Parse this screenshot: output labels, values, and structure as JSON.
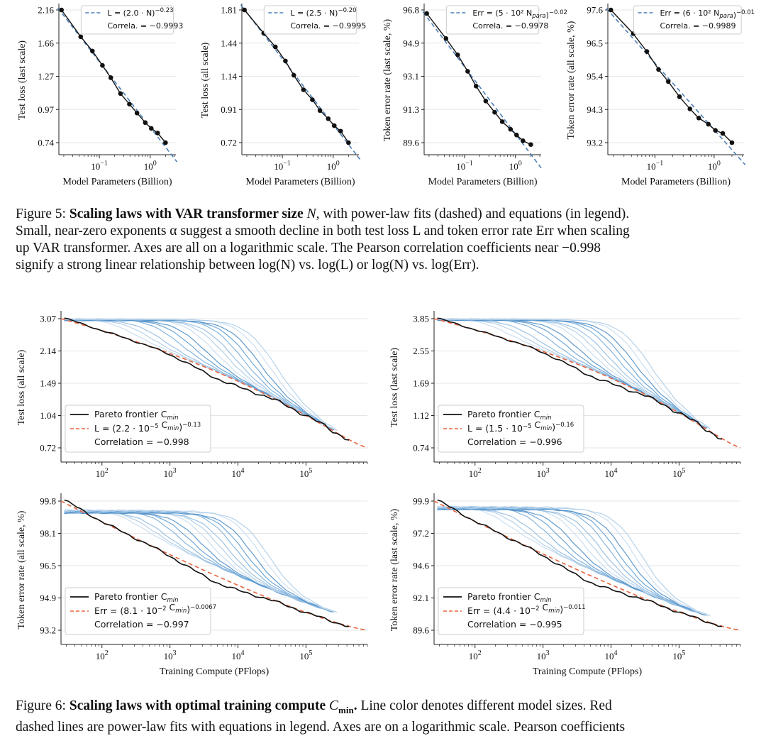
{
  "figure5": {
    "caption": {
      "label": "Figure 5:",
      "bold": "Scaling laws with VAR transformer size",
      "rest_line1": "with power-law fits (dashed) and equations (in legend).",
      "line2": "Small, near-zero exponents α suggest a smooth decline in both test loss L and token error rate Err when scaling",
      "line3": "up VAR transformer. Axes are all on a logarithmic scale. The Pearson correlation coefficients near −0.998",
      "line4": "signify a strong linear relationship between log(N) vs. log(L) or log(N) vs. log(Err)."
    }
  },
  "figure6": {
    "caption": {
      "label": "Figure 6:",
      "bold": "Scaling laws with optimal training compute",
      "rest_line1": "Line color denotes different model sizes. Red",
      "line2": "dashed lines are power-law fits with equations in legend. Axes are on a logarithmic scale. Pearson coefficients"
    }
  },
  "colors": {
    "data_line": "#111111",
    "fit_blue": "#4c7fb8",
    "fit_red": "#e8653f",
    "curves": [
      "#c7dcef",
      "#aecde8",
      "#94bde1",
      "#7aaedb",
      "#629fd3",
      "#4f8fc8"
    ]
  },
  "chart_data": [
    {
      "id": "f5a",
      "type": "line",
      "panel": "fig5",
      "xlabel": "Model Parameters (Billion)",
      "ylabel": "Test loss (last scale)",
      "x_scale": "log",
      "y_scale": "log",
      "xlim": [
        0.016,
        3.2
      ],
      "yticks": [
        "2.16",
        "1.66",
        "1.27",
        "0.97",
        "0.74"
      ],
      "xticks": [
        "10^-1",
        "10^0"
      ],
      "legend": [
        "L = (2.0 · N)^−0.23",
        "Correla. = −0.9993"
      ],
      "fit": {
        "a": 2.0,
        "alpha": 0.23
      },
      "x": [
        0.018,
        0.043,
        0.073,
        0.115,
        0.168,
        0.26,
        0.39,
        0.55,
        0.8,
        1.05,
        1.4,
        2.0
      ],
      "y": [
        2.16,
        1.74,
        1.55,
        1.38,
        1.25,
        1.1,
        1.01,
        0.94,
        0.87,
        0.83,
        0.8,
        0.74
      ]
    },
    {
      "id": "f5b",
      "type": "line",
      "panel": "fig5",
      "xlabel": "Model Parameters (Billion)",
      "ylabel": "Test loss (all scale)",
      "x_scale": "log",
      "y_scale": "log",
      "xlim": [
        0.016,
        3.2
      ],
      "yticks": [
        "1.81",
        "1.44",
        "1.14",
        "0.91",
        "0.72"
      ],
      "xticks": [
        "10^-1",
        "10^0"
      ],
      "legend": [
        "L = (2.5 · N)^−0.20",
        "Correla. = −0.9995"
      ],
      "fit": {
        "a": 2.5,
        "alpha": 0.2
      },
      "x": [
        0.018,
        0.043,
        0.073,
        0.115,
        0.168,
        0.26,
        0.39,
        0.55,
        0.8,
        1.05,
        1.4,
        2.0
      ],
      "y": [
        1.81,
        1.54,
        1.4,
        1.27,
        1.15,
        1.04,
        0.97,
        0.9,
        0.85,
        0.81,
        0.78,
        0.72
      ]
    },
    {
      "id": "f5c",
      "type": "line",
      "panel": "fig5",
      "xlabel": "Model Parameters (Billion)",
      "ylabel": "Token error rate (last scale, %)",
      "x_scale": "log",
      "y_scale": "log",
      "xlim": [
        0.016,
        3.2
      ],
      "yticks": [
        "96.8",
        "94.9",
        "93.1",
        "91.3",
        "89.6"
      ],
      "xticks": [
        "10^-1",
        "10^0"
      ],
      "legend": [
        "Err = (5 · 10² N_para)^−0.02",
        "Correla. = −0.9978"
      ],
      "fit": {
        "a": 500,
        "alpha": 0.02
      },
      "x": [
        0.018,
        0.043,
        0.073,
        0.115,
        0.168,
        0.26,
        0.39,
        0.55,
        0.8,
        1.05,
        1.4,
        2.0
      ],
      "y": [
        96.6,
        95.2,
        94.3,
        93.4,
        92.6,
        91.8,
        91.2,
        90.7,
        90.3,
        90.0,
        89.7,
        89.5
      ]
    },
    {
      "id": "f5d",
      "type": "line",
      "panel": "fig5",
      "xlabel": "Model Parameters (Billion)",
      "ylabel": "Token error rate (all scale, %)",
      "x_scale": "log",
      "y_scale": "log",
      "xlim": [
        0.016,
        3.2
      ],
      "yticks": [
        "97.6",
        "96.5",
        "95.4",
        "94.3",
        "93.2"
      ],
      "xticks": [
        "10^-1",
        "10^0"
      ],
      "legend": [
        "Err = (6 · 10² N_para)^−0.01",
        "Correla. = −0.9989"
      ],
      "fit": {
        "a": 600,
        "alpha": 0.01
      },
      "x": [
        0.018,
        0.043,
        0.073,
        0.115,
        0.168,
        0.26,
        0.39,
        0.55,
        0.8,
        1.05,
        1.4,
        2.0
      ],
      "y": [
        97.6,
        96.8,
        96.2,
        95.6,
        95.2,
        94.7,
        94.3,
        94.0,
        93.8,
        93.6,
        93.5,
        93.2
      ]
    },
    {
      "id": "f6a",
      "type": "line",
      "panel": "fig6",
      "xlabel": "",
      "ylabel": "Test loss (all scale)",
      "x_scale": "log",
      "y_scale": "log",
      "xlim": [
        25,
        800000
      ],
      "yticks": [
        "3.07",
        "2.14",
        "1.49",
        "1.04",
        "0.72"
      ],
      "xticks": [
        "10^2",
        "10^3",
        "10^4",
        "10^5"
      ],
      "legend": [
        "Pareto frontier C_min",
        "L = (2.2 · 10^−5 C_min)^−0.13",
        "Correlation = −0.998"
      ],
      "fit": {
        "a": 2.2e-05,
        "alpha": 0.13
      }
    },
    {
      "id": "f6b",
      "type": "line",
      "panel": "fig6",
      "xlabel": "",
      "ylabel": "Test loss (last scale)",
      "x_scale": "log",
      "y_scale": "log",
      "xlim": [
        25,
        800000
      ],
      "yticks": [
        "3.85",
        "2.55",
        "1.69",
        "1.12",
        "0.74"
      ],
      "xticks": [
        "10^2",
        "10^3",
        "10^4",
        "10^5"
      ],
      "legend": [
        "Pareto frontier C_min",
        "L = (1.5 · 10^−5 C_min)^−0.16",
        "Correlation = −0.996"
      ],
      "fit": {
        "a": 1.5e-05,
        "alpha": 0.16
      }
    },
    {
      "id": "f6c",
      "type": "line",
      "panel": "fig6",
      "xlabel": "Training Compute (PFlops)",
      "ylabel": "Token error rate (all scale, %)",
      "x_scale": "log",
      "y_scale": "log",
      "xlim": [
        25,
        800000
      ],
      "yticks": [
        "99.8",
        "98.1",
        "96.5",
        "94.9",
        "93.2"
      ],
      "xticks": [
        "10^2",
        "10^3",
        "10^4",
        "10^5"
      ],
      "legend": [
        "Pareto frontier C_min",
        "Err = (8.1 · 10^−2 C_min)^−0.0067",
        "Correlation = −0.997"
      ],
      "fit": {
        "a": 0.081,
        "alpha": 0.0067
      }
    },
    {
      "id": "f6d",
      "type": "line",
      "panel": "fig6",
      "xlabel": "Training Compute (PFlops)",
      "ylabel": "Token error rate (last scale, %)",
      "x_scale": "log",
      "y_scale": "log",
      "xlim": [
        25,
        800000
      ],
      "yticks": [
        "99.9",
        "97.2",
        "94.6",
        "92.1",
        "89.6"
      ],
      "xticks": [
        "10^2",
        "10^3",
        "10^4",
        "10^5"
      ],
      "legend": [
        "Pareto frontier C_min",
        "Err = (4.4 · 10^−2 C_min)^−0.011",
        "Correlation = −0.995"
      ],
      "fit": {
        "a": 0.044,
        "alpha": 0.011
      }
    }
  ]
}
